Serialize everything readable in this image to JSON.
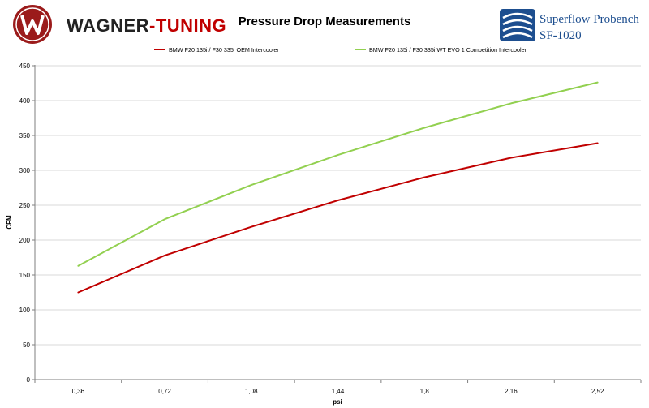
{
  "brand": {
    "name_main": "WAGNER",
    "name_accent": "-TUNING"
  },
  "equipment": {
    "line1": "Superflow Probench",
    "line2": "SF-1020"
  },
  "colors": {
    "oem": "#c00000",
    "evo": "#92d050",
    "brand_red": "#c00000",
    "superflow_blue": "#1d4e8f"
  },
  "chart_data": {
    "type": "line",
    "title": "Pressure Drop Measurements",
    "xlabel": "psi",
    "ylabel": "CFM",
    "x": [
      "0,36",
      "0,72",
      "1,08",
      "1,44",
      "1,8",
      "2,16",
      "2,52"
    ],
    "y_ticks": [
      "0",
      "50",
      "100",
      "150",
      "200",
      "250",
      "300",
      "350",
      "400",
      "450"
    ],
    "ylim": [
      0,
      450
    ],
    "grid": "horizontal",
    "legend_position": "top",
    "series": [
      {
        "name": "BMW F20 135i / F30 335i OEM Intercooler",
        "color": "#c00000",
        "values": [
          125,
          178,
          219,
          257,
          290,
          318,
          339
        ]
      },
      {
        "name": "BMW F20 135i / F30 335i WT EVO 1 Competition Intercooler",
        "color": "#92d050",
        "values": [
          163,
          230,
          279,
          322,
          361,
          396,
          426
        ]
      }
    ]
  }
}
